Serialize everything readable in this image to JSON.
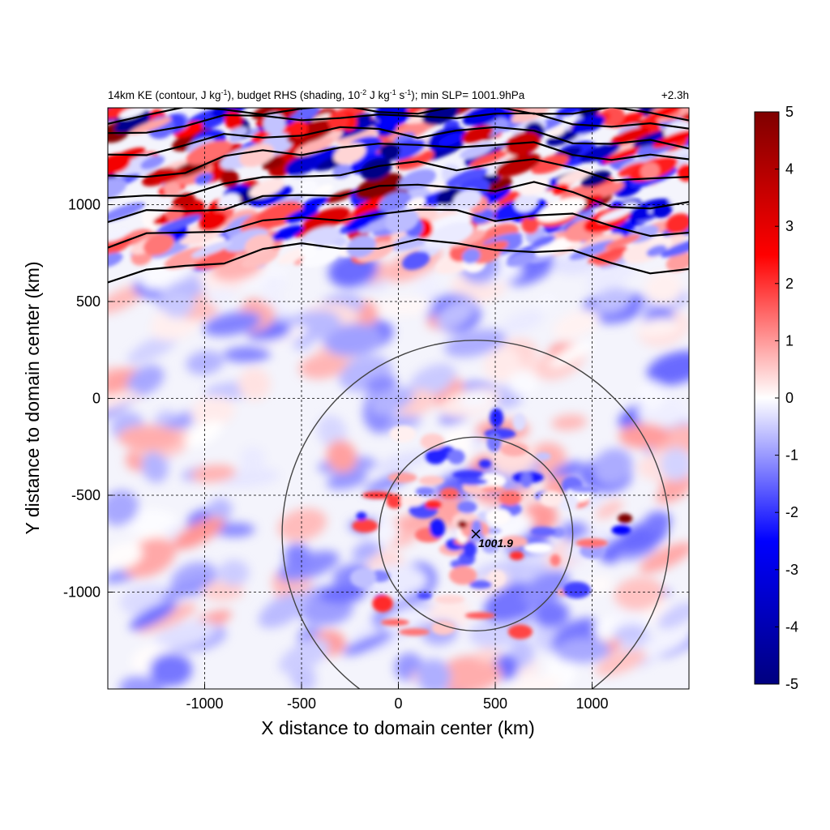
{
  "chart_data": {
    "type": "heatmap",
    "title_left_prefix": "14km KE (contour, J kg",
    "title_left_mid1": "), budget RHS (shading, 10",
    "title_left_mid2": " J kg",
    "title_left_mid3": " s",
    "title_left_suffix": "); min SLP= 1001.9hPa",
    "title_sup_m1a": "-1",
    "title_sup_m2": "-2",
    "title_sup_m1b": "-1",
    "title_sup_m1c": "-1",
    "title_right": "+2.3h",
    "xlabel": "X distance to domain center (km)",
    "ylabel": "Y distance to domain center (km)",
    "xlim": [
      -1500,
      1500
    ],
    "ylim": [
      -1500,
      1500
    ],
    "x_ticks": [
      -1000,
      -500,
      0,
      500,
      1000
    ],
    "x_tick_labels": [
      "-1000",
      "-500",
      "0",
      "500",
      "1000"
    ],
    "y_ticks": [
      -1000,
      -500,
      0,
      500,
      1000
    ],
    "y_tick_labels": [
      "-1000",
      "-500",
      "0",
      "500",
      "1000"
    ],
    "grid": "dashed",
    "colorbar": {
      "min": -5,
      "max": 5,
      "ticks": [
        5,
        4,
        3,
        2,
        1,
        0,
        -1,
        -2,
        -3,
        -4,
        -5
      ],
      "tick_labels": [
        "5",
        "4",
        "3",
        "2",
        "1",
        "0",
        "-1",
        "-2",
        "-3",
        "-4",
        "-5"
      ],
      "colors": [
        "#00007f",
        "#0000ff",
        "#ffffff",
        "#ff0000",
        "#7f0000"
      ],
      "placement": "right"
    },
    "storm_center": {
      "x": 400,
      "y": -700,
      "label": "1001.9"
    },
    "range_rings_km": [
      500,
      1000
    ],
    "ke_contours": [
      {
        "x": [
          -1500,
          -1300,
          -1100,
          -900,
          -700,
          -500,
          -300,
          -100,
          100,
          300,
          500,
          700,
          900,
          1100,
          1300,
          1500
        ],
        "y": [
          600,
          640,
          690,
          720,
          760,
          780,
          790,
          790,
          800,
          790,
          790,
          760,
          740,
          700,
          670,
          660
        ]
      },
      {
        "x": [
          -1500,
          -1300,
          -1100,
          -900,
          -700,
          -500,
          -300,
          -100,
          100,
          300,
          500,
          700,
          900,
          1100,
          1300,
          1500
        ],
        "y": [
          770,
          830,
          870,
          880,
          900,
          920,
          940,
          960,
          950,
          970,
          940,
          940,
          930,
          900,
          860,
          840
        ]
      },
      {
        "x": [
          -1500,
          -1300,
          -1100,
          -900,
          -700,
          -500,
          -300,
          -100,
          100,
          300,
          500,
          700,
          900,
          1100,
          1300,
          1500
        ],
        "y": [
          890,
          960,
          990,
          980,
          1020,
          1050,
          1070,
          1090,
          1080,
          1100,
          1090,
          1100,
          1050,
          1010,
          990,
          990
        ]
      },
      {
        "x": [
          -1500,
          -1300,
          -1100,
          -900,
          -700,
          -500,
          -300,
          -100,
          100,
          300,
          500,
          700,
          900,
          1100,
          1300,
          1500
        ],
        "y": [
          1010,
          1050,
          1070,
          1100,
          1120,
          1160,
          1170,
          1180,
          1210,
          1200,
          1220,
          1210,
          1190,
          1150,
          1130,
          1120
        ]
      },
      {
        "x": [
          -1500,
          -1300,
          -1100,
          -900,
          -700,
          -500,
          -300,
          -100,
          100,
          300,
          500,
          700,
          900,
          1100,
          1300,
          1500
        ],
        "y": [
          1130,
          1160,
          1180,
          1230,
          1270,
          1280,
          1300,
          1290,
          1310,
          1320,
          1300,
          1300,
          1270,
          1250,
          1240,
          1220
        ]
      },
      {
        "x": [
          -1500,
          -1300,
          -1100,
          -900,
          -700,
          -500,
          -300,
          -100,
          100,
          300,
          500,
          700,
          900,
          1100,
          1300,
          1500
        ],
        "y": [
          1250,
          1280,
          1310,
          1340,
          1350,
          1380,
          1390,
          1370,
          1360,
          1400,
          1380,
          1370,
          1340,
          1320,
          1310,
          1290
        ]
      },
      {
        "x": [
          -1500,
          -1300,
          -1100,
          -900,
          -700,
          -500,
          -300,
          -100,
          100,
          300,
          500,
          700,
          900,
          1100,
          1300,
          1500
        ],
        "y": [
          1350,
          1390,
          1420,
          1440,
          1450,
          1460,
          1450,
          1440,
          1460,
          1470,
          1460,
          1450,
          1430,
          1420,
          1400,
          1380
        ]
      },
      {
        "x": [
          -1500,
          -1300,
          -1100,
          -900,
          -700,
          -500,
          -300,
          -100,
          100,
          300,
          500,
          700,
          900,
          1100,
          1300,
          1500
        ],
        "y": [
          1440,
          1470,
          1480,
          1490,
          1490,
          1490,
          1490,
          1490,
          1490,
          1490,
          1490,
          1490,
          1480,
          1480,
          1470,
          1460
        ]
      }
    ]
  }
}
